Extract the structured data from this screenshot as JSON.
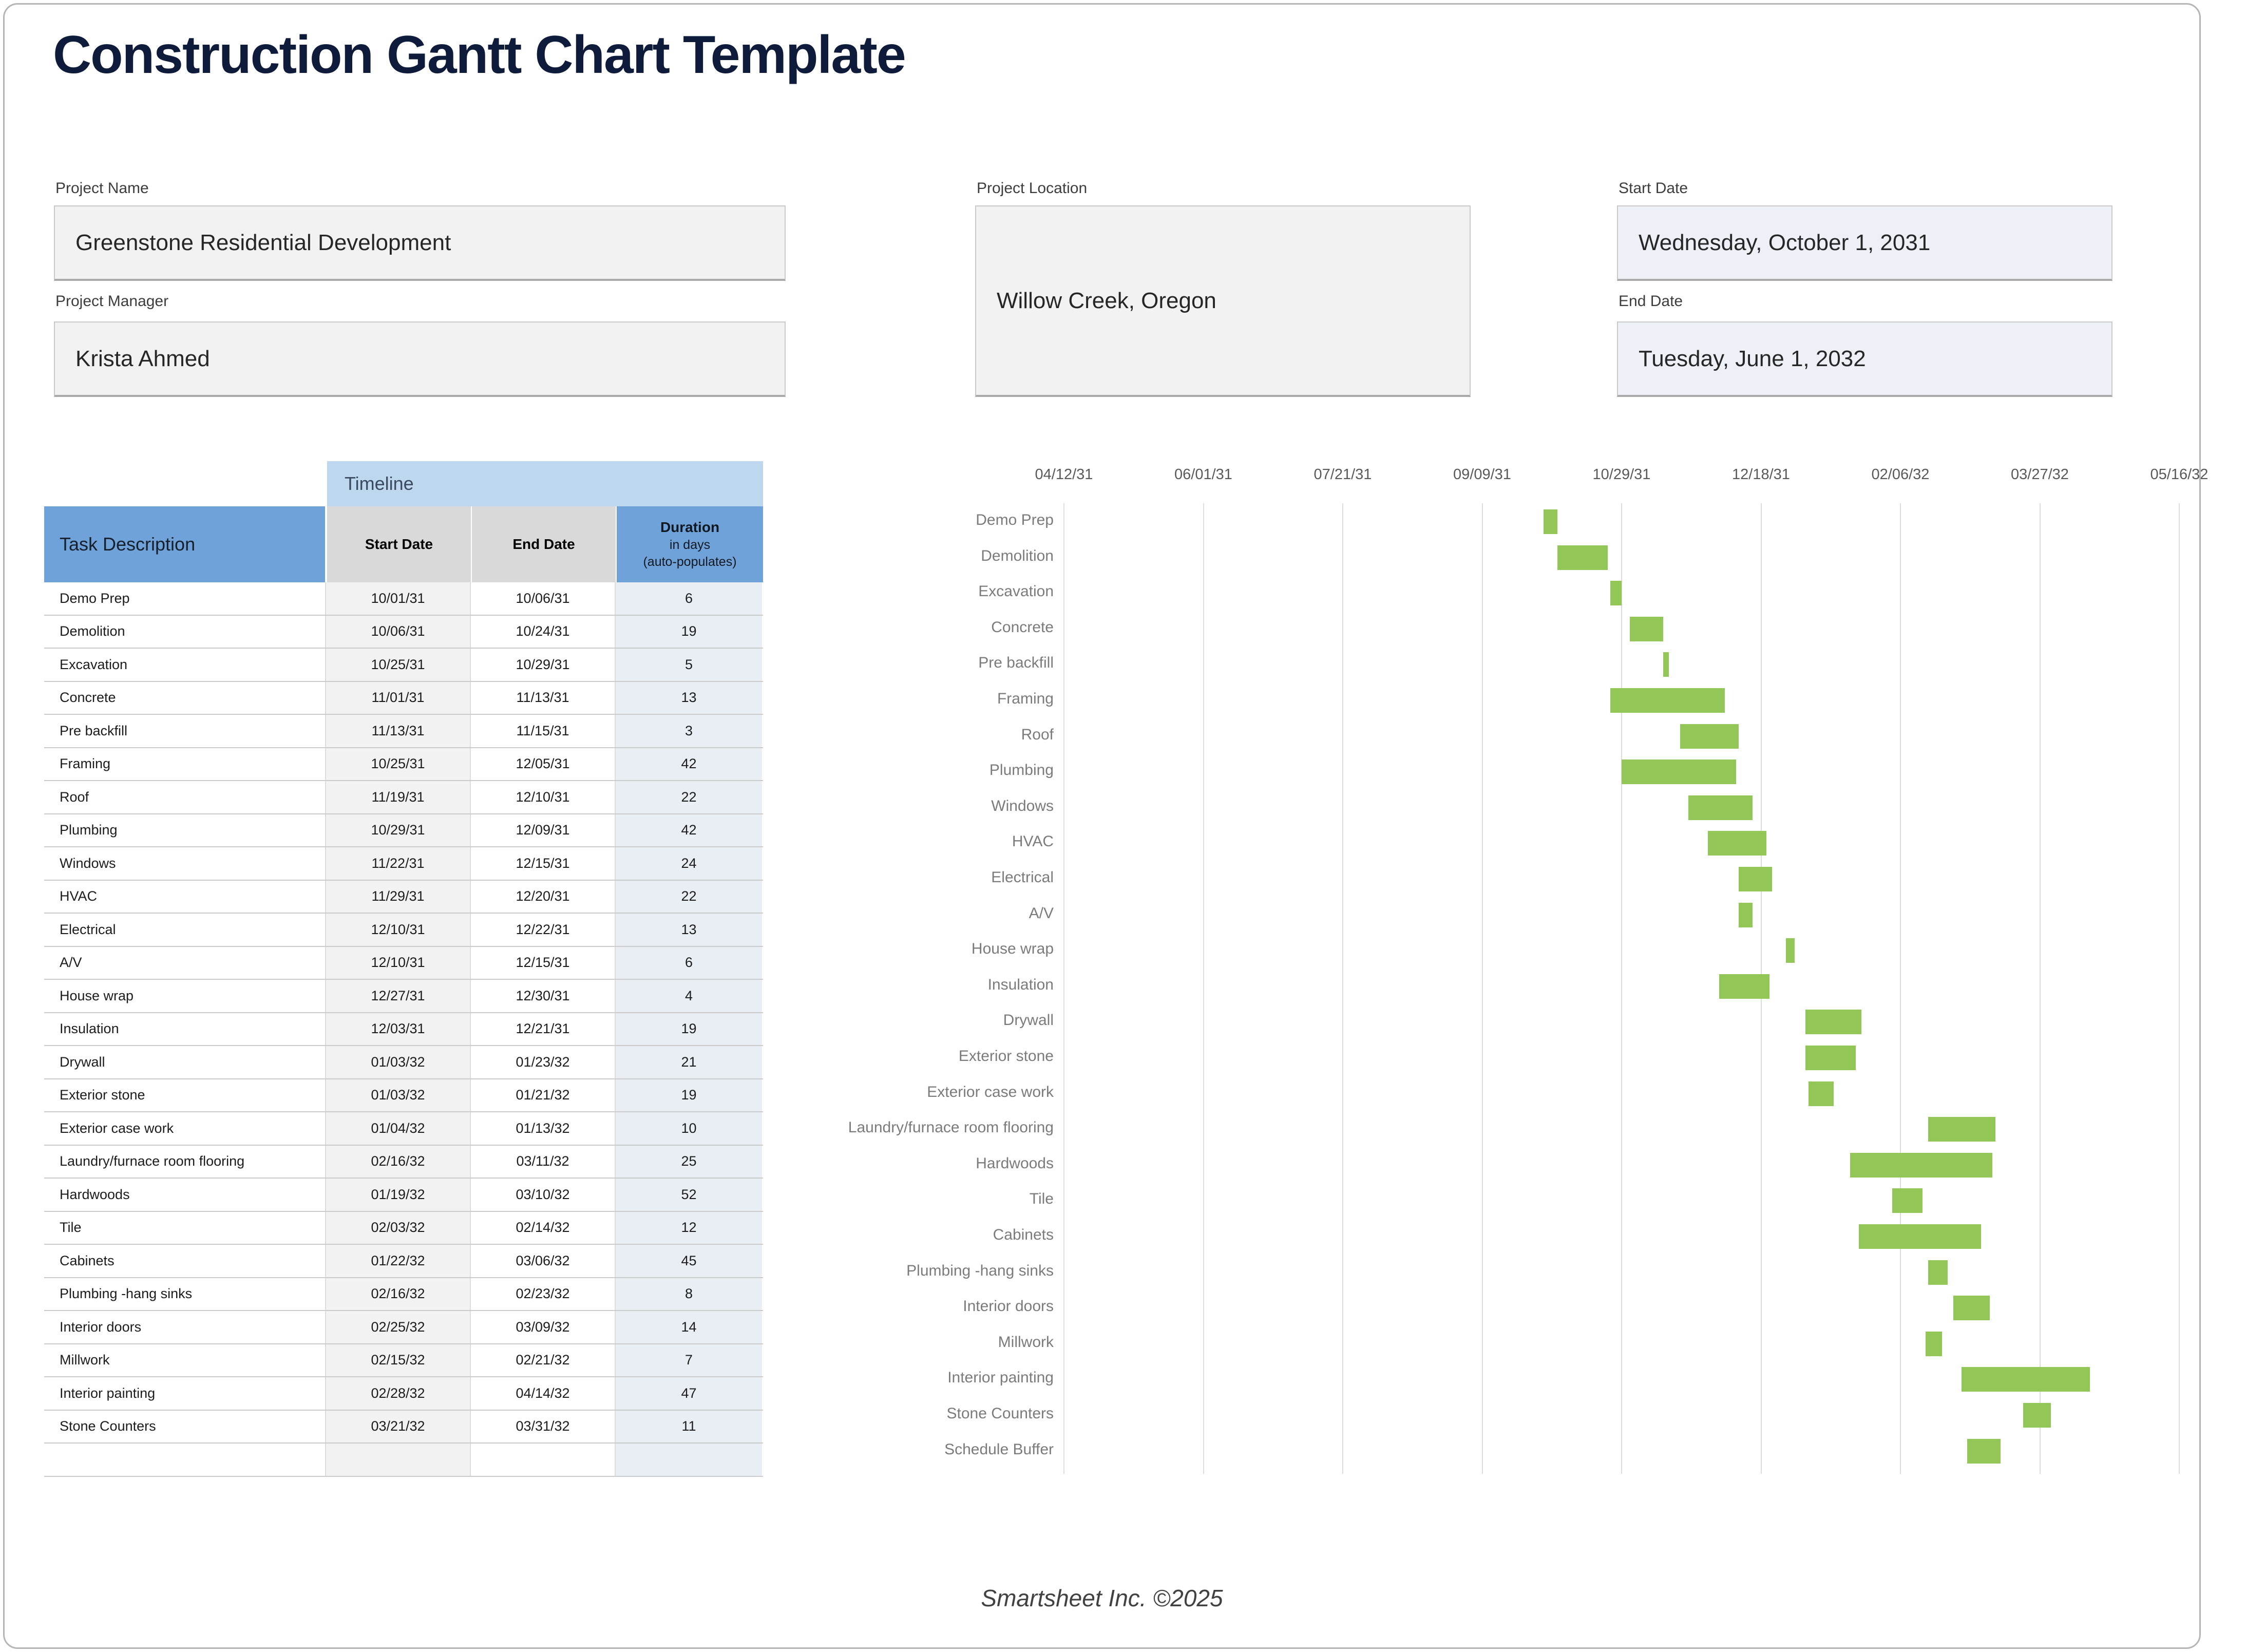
{
  "title": "Construction Gantt Chart Template",
  "fields": {
    "project_name_label": "Project Name",
    "project_name": "Greenstone Residential Development",
    "project_manager_label": "Project Manager",
    "project_manager": "Krista Ahmed",
    "project_location_label": "Project Location",
    "project_location": "Willow Creek, Oregon",
    "start_date_label": "Start Date",
    "start_date": "Wednesday, October 1, 2031",
    "end_date_label": "End Date",
    "end_date": "Tuesday, June 1, 2032"
  },
  "table": {
    "timeline_header": "Timeline",
    "columns": {
      "task": "Task Description",
      "start": "Start Date",
      "end": "End Date",
      "duration_title": "Duration",
      "duration_sub1": "in days",
      "duration_sub2": "(auto-populates)"
    }
  },
  "chart_data": {
    "type": "bar",
    "subtype": "gantt",
    "axis_ticks": [
      "04/12/31",
      "06/01/31",
      "07/21/31",
      "09/09/31",
      "10/29/31",
      "12/18/31",
      "02/06/32",
      "03/27/32",
      "05/16/32"
    ],
    "tick_interval_days": 50,
    "legend_position": "none",
    "grid": true,
    "tasks": [
      {
        "label": "Demo Prep",
        "start": "10/01/31",
        "end": "10/06/31",
        "duration": "6",
        "in_table": true
      },
      {
        "label": "Demolition",
        "start": "10/06/31",
        "end": "10/24/31",
        "duration": "19",
        "in_table": true
      },
      {
        "label": "Excavation",
        "start": "10/25/31",
        "end": "10/29/31",
        "duration": "5",
        "in_table": true
      },
      {
        "label": "Concrete",
        "start": "11/01/31",
        "end": "11/13/31",
        "duration": "13",
        "in_table": true
      },
      {
        "label": "Pre backfill",
        "start": "11/13/31",
        "end": "11/15/31",
        "duration": "3",
        "in_table": true
      },
      {
        "label": "Framing",
        "start": "10/25/31",
        "end": "12/05/31",
        "duration": "42",
        "in_table": true
      },
      {
        "label": "Roof",
        "start": "11/19/31",
        "end": "12/10/31",
        "duration": "22",
        "in_table": true
      },
      {
        "label": "Plumbing",
        "start": "10/29/31",
        "end": "12/09/31",
        "duration": "42",
        "in_table": true
      },
      {
        "label": "Windows",
        "start": "11/22/31",
        "end": "12/15/31",
        "duration": "24",
        "in_table": true
      },
      {
        "label": "HVAC",
        "start": "11/29/31",
        "end": "12/20/31",
        "duration": "22",
        "in_table": true
      },
      {
        "label": "Electrical",
        "start": "12/10/31",
        "end": "12/22/31",
        "duration": "13",
        "in_table": true
      },
      {
        "label": "A/V",
        "start": "12/10/31",
        "end": "12/15/31",
        "duration": "6",
        "in_table": true
      },
      {
        "label": "House wrap",
        "start": "12/27/31",
        "end": "12/30/31",
        "duration": "4",
        "in_table": true
      },
      {
        "label": "Insulation",
        "start": "12/03/31",
        "end": "12/21/31",
        "duration": "19",
        "in_table": true
      },
      {
        "label": "Drywall",
        "start": "01/03/32",
        "end": "01/23/32",
        "duration": "21",
        "in_table": true
      },
      {
        "label": "Exterior stone",
        "start": "01/03/32",
        "end": "01/21/32",
        "duration": "19",
        "in_table": true
      },
      {
        "label": "Exterior case work",
        "start": "01/04/32",
        "end": "01/13/32",
        "duration": "10",
        "in_table": true
      },
      {
        "label": "Laundry/furnace room flooring",
        "start": "02/16/32",
        "end": "03/11/32",
        "duration": "25",
        "in_table": true
      },
      {
        "label": "Hardwoods",
        "start": "01/19/32",
        "end": "03/10/32",
        "duration": "52",
        "in_table": true
      },
      {
        "label": "Tile",
        "start": "02/03/32",
        "end": "02/14/32",
        "duration": "12",
        "in_table": true
      },
      {
        "label": "Cabinets",
        "start": "01/22/32",
        "end": "03/06/32",
        "duration": "45",
        "in_table": true
      },
      {
        "label": "Plumbing -hang sinks",
        "start": "02/16/32",
        "end": "02/23/32",
        "duration": "8",
        "in_table": true
      },
      {
        "label": "Interior doors",
        "start": "02/25/32",
        "end": "03/09/32",
        "duration": "14",
        "in_table": true
      },
      {
        "label": "Millwork",
        "start": "02/15/32",
        "end": "02/21/32",
        "duration": "7",
        "in_table": true
      },
      {
        "label": "Interior painting",
        "start": "02/28/32",
        "end": "04/14/32",
        "duration": "47",
        "in_table": true
      },
      {
        "label": "Stone Counters",
        "start": "03/21/32",
        "end": "03/31/32",
        "duration": "11",
        "in_table": true
      },
      {
        "label": "Schedule Buffer",
        "start": "03/01/32",
        "end": "03/13/32",
        "duration": "",
        "in_table": false
      }
    ]
  },
  "colors": {
    "title_navy": "#0e1b3a",
    "header_blue": "#6fa2d9",
    "timeline_blue": "#bdd7ee",
    "header_gray": "#d9d9d9",
    "start_cell_gray": "#f2f2f2",
    "duration_cell_blue": "#e9edf4",
    "bar_green": "#92c657",
    "gridline_gray": "#dcdcdc"
  },
  "footer": "Smartsheet Inc. ©2025"
}
